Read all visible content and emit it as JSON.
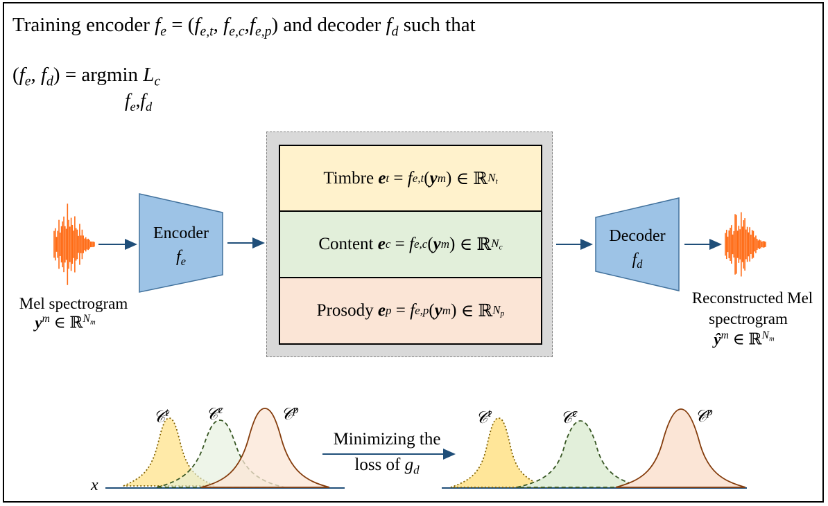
{
  "header": {
    "line1_text": "Training encoder",
    "line1_fe": "f",
    "line1_e": "e",
    "line1_eq": "= (",
    "line1_f1": "f",
    "line1_s1": "e,t",
    "line1_f2": "f",
    "line1_s2": "e,c",
    "line1_f3": "f",
    "line1_s3": "e,p",
    "line1_close": ")",
    "line1_and": "and decoder",
    "line1_fd": "f",
    "line1_d": "d",
    "line1_tail": "such that",
    "line2_open": "(",
    "line2_close": ") = argmin",
    "line2_L": "L",
    "line2_c": "c",
    "argsub_f": "f",
    "argsub_e": "e",
    "argsub_d": "d"
  },
  "input": {
    "label": "Mel spectrogram",
    "symbol": "y",
    "sup": "m",
    "in": "∈ ℝ",
    "dim": "N",
    "dim_sub": "m"
  },
  "encoder": {
    "label": "Encoder",
    "sym": "f",
    "sub": "e"
  },
  "decoder": {
    "label": "Decoder",
    "sym": "f",
    "sub": "d"
  },
  "embeddings": [
    {
      "name": "Timbre",
      "e": "e",
      "sup": "t",
      "f": "f",
      "fsub": "e,t",
      "arg": "y",
      "argsup": "m",
      "in": "∈ ℝ",
      "dim": "N",
      "dimsub": "t"
    },
    {
      "name": "Content",
      "e": "e",
      "sup": "c",
      "f": "f",
      "fsub": "e,c",
      "arg": "y",
      "argsup": "m",
      "in": "∈ ℝ",
      "dim": "N",
      "dimsub": "c"
    },
    {
      "name": "Prosody",
      "e": "e",
      "sup": "p",
      "f": "f",
      "fsub": "e,p",
      "arg": "y",
      "argsup": "m",
      "in": "∈ ℝ",
      "dim": "N",
      "dimsub": "p"
    }
  ],
  "output": {
    "label_line1": "Reconstructed Mel",
    "label_line2": "spectrogram",
    "symbol": "ŷ",
    "sup": "m",
    "in": "∈ ℝ",
    "dim": "N",
    "dim_sub": "m"
  },
  "distributions": {
    "axis_label": "x",
    "c_letter": "𝒞",
    "timbre_sup": "t",
    "content_sup": "c",
    "prosody_sup": "p",
    "arrow_line1": "Minimizing the",
    "arrow_line2": "loss of",
    "arrow_g": "g",
    "arrow_gsub": "d"
  },
  "colors": {
    "waveform": "#ff6a13",
    "block_fill": "#9dc3e6",
    "block_stroke": "#41719c",
    "arrow": "#1f4e79",
    "timbre_fill": "#ffe699",
    "timbre_stroke": "#7f6000",
    "content_fill": "#e2efda",
    "content_stroke": "#375623",
    "prosody_fill": "#fbe5d6",
    "prosody_stroke": "#843c0c"
  }
}
